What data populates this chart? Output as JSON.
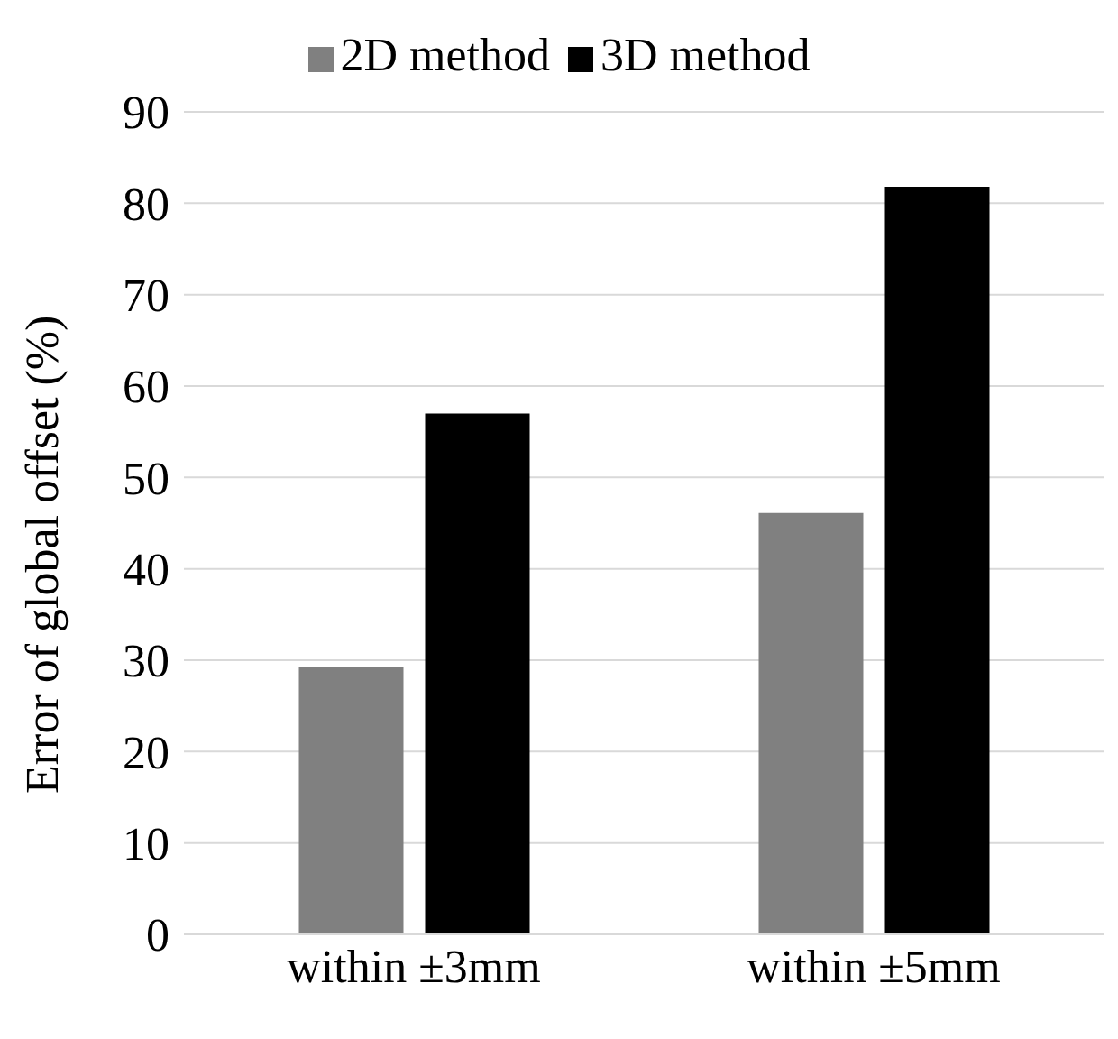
{
  "chart_data": {
    "type": "bar",
    "ylabel": "Error of global offset (%)",
    "categories": [
      "within ±3mm",
      "within ±5mm"
    ],
    "series": [
      {
        "name": "2D method",
        "color": "#808080",
        "values": [
          29.2,
          46.1
        ]
      },
      {
        "name": "3D method",
        "color": "#000000",
        "values": [
          57,
          81.8
        ]
      }
    ],
    "ylim": [
      0,
      90
    ],
    "yticks": [
      0,
      10,
      20,
      30,
      40,
      50,
      60,
      70,
      80,
      90
    ],
    "grid": "y",
    "legend": "top"
  }
}
